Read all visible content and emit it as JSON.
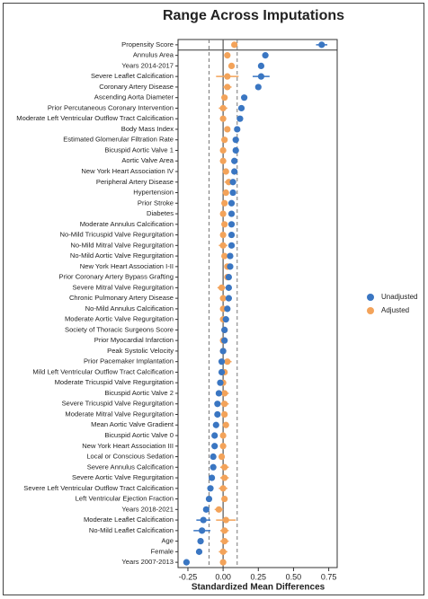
{
  "chart_data": {
    "type": "dot",
    "title": "Range Across Imputations",
    "x_label": "Standardized Mean Differences",
    "categories": [
      "Propensity Score",
      "Annulus Area",
      "Years 2014-2017",
      "Severe Leaflet Calcification",
      "Coronary Artery Disease",
      "Ascending Aorta Diameter",
      "Prior Percutaneous Coronary Intervention",
      "Moderate Left Ventricular Outflow Tract Calcification",
      "Body Mass Index",
      "Estimated Glomerular Filtration Rate",
      "Bicuspid Aortic Valve 1",
      "Aortic Valve Area",
      "New York Heart Association IV",
      "Peripheral Artery Disease",
      "Hypertension",
      "Prior Stroke",
      "Diabetes",
      "Moderate Annulus Calcification",
      "No-Mild Tricuspid Valve Regurgitation",
      "No-Mild Mitral Valve Regurgitation",
      "No-Mild Aortic Valve Regurgitation",
      "New York Heart Association I-II",
      "Prior Coronary Artery Bypass Grafting",
      "Severe Mitral Valve Regurgitation",
      "Chronic Pulmonary Artery Disease",
      "No-Mild Annulus Calcification",
      "Moderate Aortic Valve Regurgitation",
      "Society of Thoracic Surgeons Score",
      "Prior Myocardial Infarction",
      "Peak Systolic Velocity",
      "Prior Pacemaker Implantation",
      "Mild Left Ventricular Outflow Tract Calcification",
      "Moderate Tricuspid Valve Regurgitation",
      "Bicuspid Aortic Valve 2",
      "Severe Tricuspid Valve Regurgitation",
      "Moderate Mitral Valve Regurgitation",
      "Mean Aortic Valve Gradient",
      "Bicuspid Aortic Valve 0",
      "New York Heart Association III",
      "Local or Conscious Sedation",
      "Severe Annulus Calcification",
      "Severe Aortic Valve Regurgitation",
      "Severe Left Ventricular Outflow Tract Calcification",
      "Left Ventricular Ejection Fraction",
      "Years 2018-2021",
      "Moderate Leaflet Calcification",
      "No-Mild Leaflet Calcification",
      "Age",
      "Female",
      "Years 2007-2013"
    ],
    "series": [
      {
        "name": "Unadjusted",
        "color": "#3a76c2",
        "values": [
          0.7,
          0.3,
          0.27,
          0.27,
          0.25,
          0.15,
          0.13,
          0.12,
          0.1,
          0.09,
          0.09,
          0.08,
          0.08,
          0.07,
          0.07,
          0.06,
          0.06,
          0.06,
          0.06,
          0.06,
          0.05,
          0.05,
          0.04,
          0.04,
          0.04,
          0.03,
          0.02,
          0.01,
          0.01,
          0.0,
          -0.01,
          -0.01,
          -0.02,
          -0.03,
          -0.04,
          -0.04,
          -0.05,
          -0.06,
          -0.06,
          -0.07,
          -0.07,
          -0.08,
          -0.09,
          -0.1,
          -0.12,
          -0.14,
          -0.15,
          -0.16,
          -0.17,
          -0.26
        ],
        "errors": [
          0.04,
          0,
          0,
          0.06,
          0,
          0,
          0,
          0,
          0,
          0,
          0,
          0,
          0,
          0,
          0,
          0,
          0,
          0,
          0,
          0,
          0,
          0,
          0,
          0,
          0,
          0,
          0,
          0,
          0,
          0,
          0,
          0,
          0,
          0,
          0,
          0,
          0,
          0,
          0,
          0,
          0,
          0,
          0,
          0,
          0,
          0.05,
          0.06,
          0,
          0,
          0
        ]
      },
      {
        "name": "Adjusted",
        "color": "#f3a35a",
        "values": [
          0.08,
          0.03,
          0.06,
          0.03,
          0.03,
          0.01,
          0.0,
          0.0,
          0.03,
          0.01,
          0.0,
          0.0,
          0.02,
          0.04,
          0.02,
          0.01,
          0.0,
          0.01,
          0.0,
          0.0,
          0.01,
          0.03,
          0.03,
          -0.01,
          0.0,
          0.0,
          0.0,
          0.01,
          0.0,
          0.0,
          0.03,
          0.01,
          0.0,
          0.01,
          0.01,
          0.01,
          0.02,
          0.0,
          0.0,
          -0.01,
          0.01,
          0.01,
          0.0,
          0.01,
          -0.03,
          0.02,
          0.01,
          0.01,
          0.0,
          0.0
        ],
        "errors": [
          0.02,
          0.02,
          0.02,
          0.08,
          0.03,
          0.02,
          0.03,
          0.02,
          0.02,
          0.02,
          0.02,
          0.02,
          0.02,
          0.03,
          0.02,
          0.02,
          0.02,
          0.02,
          0.02,
          0.03,
          0.02,
          0.02,
          0.02,
          0.03,
          0.02,
          0.02,
          0.02,
          0.02,
          0.02,
          0.02,
          0.03,
          0.02,
          0.02,
          0.03,
          0.03,
          0.02,
          0.02,
          0.02,
          0.02,
          0.02,
          0.03,
          0.03,
          0.03,
          0.02,
          0.03,
          0.07,
          0.03,
          0.03,
          0.03,
          0.02
        ]
      }
    ],
    "xlim": [
      -0.32,
      0.81
    ],
    "xticks": [
      -0.25,
      {
        "value": 0,
        "label": "0.00"
      },
      0.25,
      {
        "value": 0.5,
        "label": "0.50"
      },
      0.75
    ],
    "zero_line": 0,
    "dashed_lines": [
      -0.1,
      0.1
    ],
    "separator_after": 0,
    "legend": "right"
  }
}
